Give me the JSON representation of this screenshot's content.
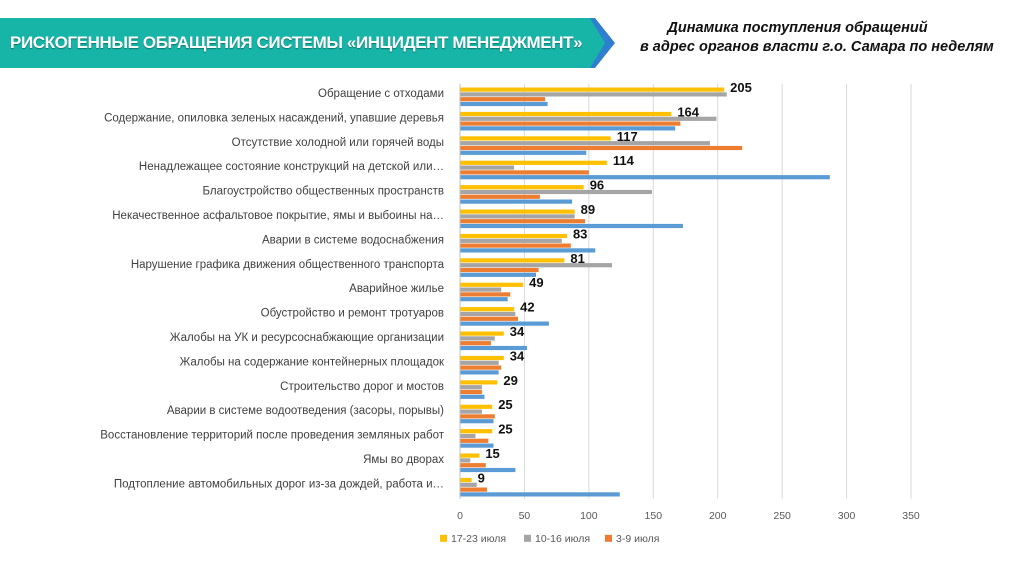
{
  "header": {
    "banner_title": "РИСКОГЕННЫЕ ОБРАЩЕНИЯ СИСТЕМЫ «ИНЦИДЕНТ МЕНЕДЖМЕНТ»",
    "subtitle_line1": "Динамика поступления обращений",
    "subtitle_line2": "в адрес органов власти г.о. Самара по неделям",
    "banner_color": "#17b4a8",
    "banner_arrow_color": "#2e7fd0"
  },
  "chart_data": {
    "type": "bar",
    "orientation": "horizontal",
    "categories": [
      "Обращение с отходами",
      "Содержание, опиловка зеленых насаждений, упавшие деревья",
      "Отсутствие холодной или горячей воды",
      "Ненадлежащее состояние конструкций на детской или…",
      "Благоустройство общественных пространств",
      "Некачественное асфальтовое покрытие, ямы и выбоины на…",
      "Аварии в системе водоснабжения",
      "Нарушение графика движения общественного транспорта",
      "Аварийное жилье",
      "Обустройство и ремонт тротуаров",
      "Жалобы на УК и ресурсоснабжающие организации",
      "Жалобы на содержание контейнерных площадок",
      "Строительство дорог и мостов",
      "Аварии в системе водоотведения (засоры, порывы)",
      "Восстановление территорий после проведения земляных работ",
      "Ямы во дворах",
      "Подтопление автомобильных дорог из-за дождей, работа и…"
    ],
    "series": [
      {
        "name": "17-23 июля",
        "color": "#ffc000",
        "values": [
          205,
          164,
          117,
          114,
          96,
          89,
          83,
          81,
          49,
          42,
          34,
          34,
          29,
          25,
          25,
          15,
          9
        ]
      },
      {
        "name": "10-16 июля",
        "color": "#a5a5a5",
        "values": [
          207,
          199,
          194,
          42,
          149,
          89,
          79,
          118,
          32,
          43,
          27,
          30,
          17,
          17,
          12,
          8,
          13
        ]
      },
      {
        "name": "3-9 июля",
        "color": "#ed7d31",
        "values": [
          66,
          171,
          219,
          100,
          62,
          97,
          86,
          61,
          39,
          45,
          24,
          32,
          17,
          27,
          22,
          20,
          21
        ]
      },
      {
        "name": "",
        "color": "#5b9bd5",
        "values": [
          68,
          167,
          98,
          287,
          87,
          173,
          105,
          59,
          37,
          69,
          52,
          30,
          19,
          26,
          26,
          43,
          124
        ]
      }
    ],
    "data_labels": [
      205,
      164,
      117,
      114,
      96,
      89,
      83,
      81,
      49,
      42,
      34,
      34,
      29,
      25,
      25,
      15,
      9
    ],
    "x_ticks": [
      0,
      50,
      100,
      150,
      200,
      250,
      300,
      350
    ],
    "xlim": [
      0,
      350
    ],
    "legend": [
      "17-23 июля",
      "10-16 июля",
      "3-9 июля"
    ],
    "legend_position": "bottom",
    "grid": "vertical"
  }
}
